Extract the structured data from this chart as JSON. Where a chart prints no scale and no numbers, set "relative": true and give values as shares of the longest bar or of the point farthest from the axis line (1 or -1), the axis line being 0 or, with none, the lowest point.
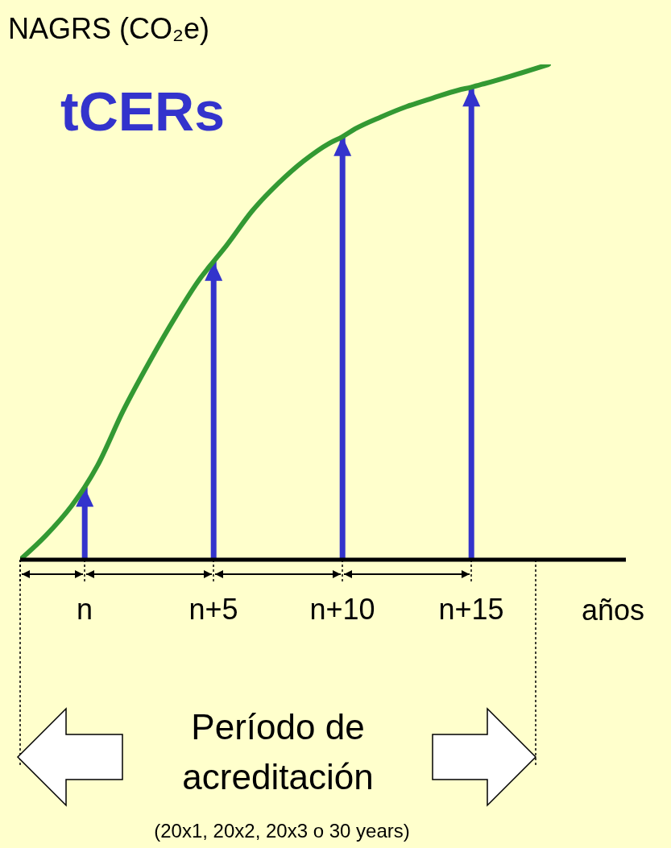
{
  "chart_data": {
    "type": "line",
    "title": "tCERs",
    "ylabel": "NAGRS (CO₂e)",
    "xlabel": "años",
    "relative": true,
    "categories": [
      null,
      null,
      null,
      null,
      null,
      "n",
      null,
      null,
      null,
      null,
      null,
      null,
      null,
      null,
      null,
      "n+5",
      null,
      null,
      null,
      null,
      null,
      null,
      null,
      null,
      null,
      "n+10",
      null,
      null,
      null,
      null,
      null,
      null,
      null,
      null,
      null,
      "n+15",
      null,
      null,
      null,
      null,
      null,
      null,
      null,
      null,
      null,
      null,
      null,
      null
    ],
    "series": [
      {
        "type": "line",
        "color": "#339933",
        "values": [
          0,
          null,
          0.049,
          null,
          0.109,
          0.146,
          0.19,
          null,
          0.301,
          null,
          0.398,
          null,
          0.488,
          null,
          0.569,
          0.602,
          0.634,
          null,
          0.704,
          null,
          0.759,
          null,
          0.805,
          null,
          0.841,
          0.854,
          0.87,
          null,
          0.894,
          null,
          0.915,
          null,
          0.932,
          null,
          0.948,
          0.954,
          0.961,
          null,
          0.976,
          null,
          null,
          1,
          null,
          null,
          null,
          null,
          null,
          null
        ]
      },
      {
        "type": "bar",
        "color": "#3333cc",
        "values": [
          null,
          null,
          null,
          null,
          null,
          0.146,
          null,
          null,
          null,
          null,
          null,
          null,
          null,
          null,
          null,
          0.602,
          null,
          null,
          null,
          null,
          null,
          null,
          null,
          null,
          null,
          0.854,
          null,
          null,
          null,
          null,
          null,
          null,
          null,
          null,
          null,
          0.954,
          null,
          null,
          null,
          null,
          null,
          null,
          null,
          null,
          null,
          null,
          null,
          null
        ]
      }
    ],
    "legend": false,
    "grid": false,
    "marker": "none",
    "line_style": "solid",
    "annotations": [
      "Período de acreditación",
      "(20x1, 20x2, 20x3 o 30 years)"
    ]
  }
}
